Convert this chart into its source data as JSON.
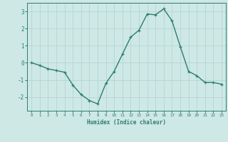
{
  "x": [
    0,
    1,
    2,
    3,
    4,
    5,
    6,
    7,
    8,
    9,
    10,
    11,
    12,
    13,
    14,
    15,
    16,
    17,
    18,
    19,
    20,
    21,
    22,
    23
  ],
  "y": [
    0.0,
    -0.15,
    -0.35,
    -0.45,
    -0.55,
    -1.3,
    -1.85,
    -2.2,
    -2.4,
    -1.2,
    -0.5,
    0.5,
    1.5,
    1.9,
    2.85,
    2.8,
    3.15,
    2.45,
    0.95,
    -0.5,
    -0.75,
    -1.15,
    -1.15,
    -1.25
  ],
  "line_color": "#2e7d6e",
  "marker": "+",
  "xlabel": "Humidex (Indice chaleur)",
  "xlim": [
    -0.5,
    23.5
  ],
  "ylim": [
    -2.8,
    3.5
  ],
  "yticks": [
    -2,
    -1,
    0,
    1,
    2,
    3
  ],
  "xticks": [
    0,
    1,
    2,
    3,
    4,
    5,
    6,
    7,
    8,
    9,
    10,
    11,
    12,
    13,
    14,
    15,
    16,
    17,
    18,
    19,
    20,
    21,
    22,
    23
  ],
  "background_color": "#cde8e5",
  "grid_color": "#b8d8d4",
  "tick_color": "#2e7d6e",
  "label_color": "#2e7d6e",
  "line_width": 1.0,
  "marker_size": 3.5
}
